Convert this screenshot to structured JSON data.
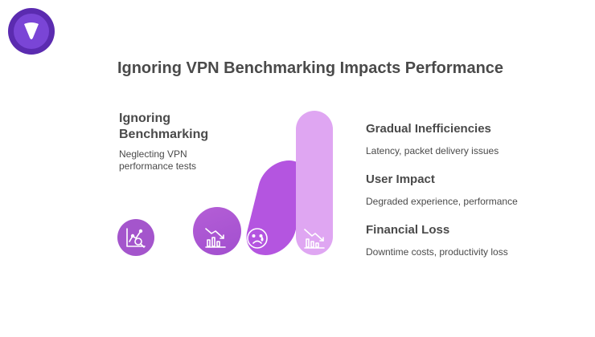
{
  "title": "Ignoring VPN Benchmarking Impacts Performance",
  "left": {
    "heading": "Ignoring Benchmarking",
    "description": "Neglecting VPN performance tests",
    "icon": "chart-search-icon"
  },
  "bars": [
    {
      "icon": "declining-chart-icon",
      "color": "#a24fcf"
    },
    {
      "icon": "sad-face-icon",
      "color": "#b455e0"
    },
    {
      "icon": "declining-bars-icon",
      "color": "#dfa6f2"
    }
  ],
  "right": {
    "items": [
      {
        "title": "Gradual Inefficiencies",
        "description": "Latency, packet delivery issues"
      },
      {
        "title": "User Impact",
        "description": "Degraded experience, performance"
      },
      {
        "title": "Financial Loss",
        "description": "Downtime costs, productivity loss"
      }
    ]
  },
  "colors": {
    "logo_outer": "#5b2bb0",
    "logo_inner": "#7a45d6",
    "accent": "#a455cc"
  }
}
